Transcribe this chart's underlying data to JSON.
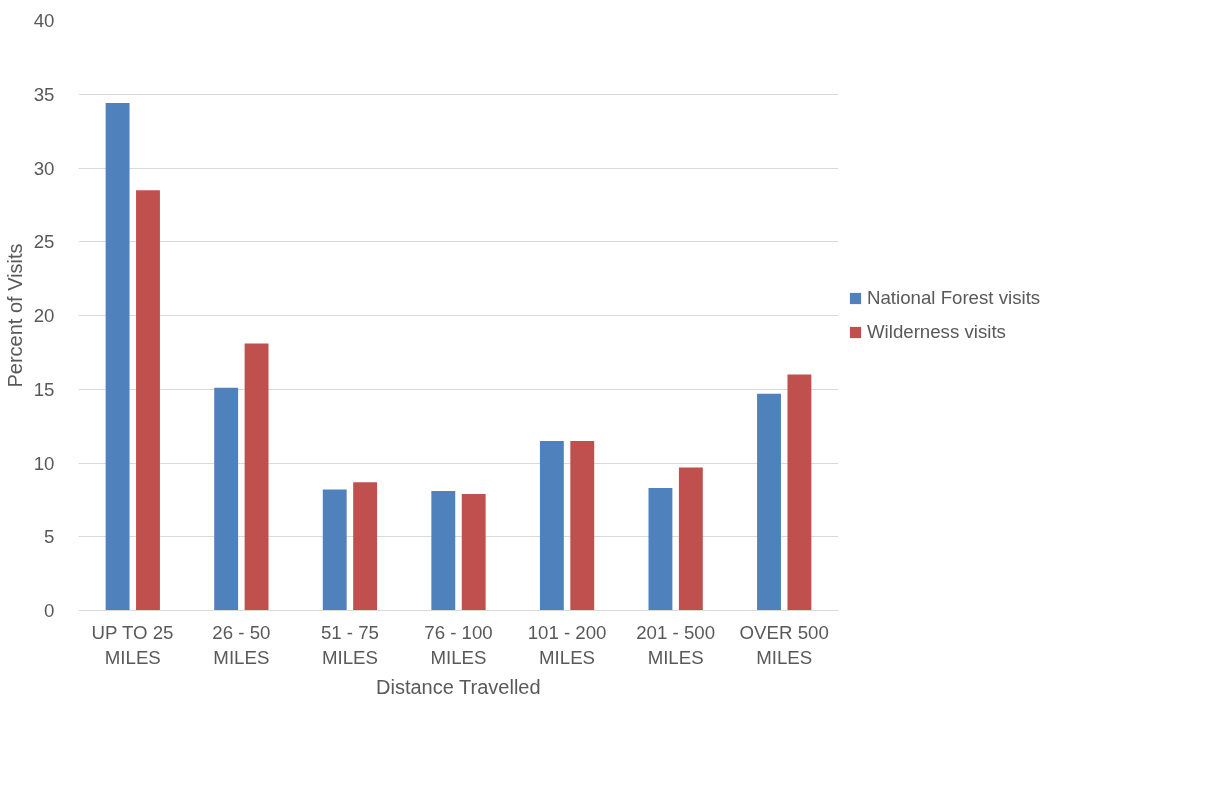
{
  "chart_data": {
    "type": "bar",
    "xlabel": "Distance Travelled",
    "ylabel": "Percent of Visits",
    "categories": [
      "UP TO 25 MILES",
      "26 - 50 MILES",
      "51 - 75 MILES",
      "76 - 100 MILES",
      "101 - 200 MILES",
      "201 - 500 MILES",
      "OVER 500 MILES"
    ],
    "series": [
      {
        "name": "National Forest visits",
        "color": "#4f81bd",
        "values": [
          34.4,
          15.1,
          8.2,
          8.1,
          11.5,
          8.3,
          14.7
        ]
      },
      {
        "name": "Wilderness visits",
        "color": "#c0504d",
        "values": [
          28.5,
          18.1,
          8.7,
          7.9,
          11.5,
          9.7,
          16.0
        ]
      }
    ],
    "ylim": [
      0,
      40
    ],
    "yticks": [
      0,
      5,
      10,
      15,
      20,
      25,
      30,
      35,
      40
    ],
    "grid": "y",
    "legend": "right"
  }
}
